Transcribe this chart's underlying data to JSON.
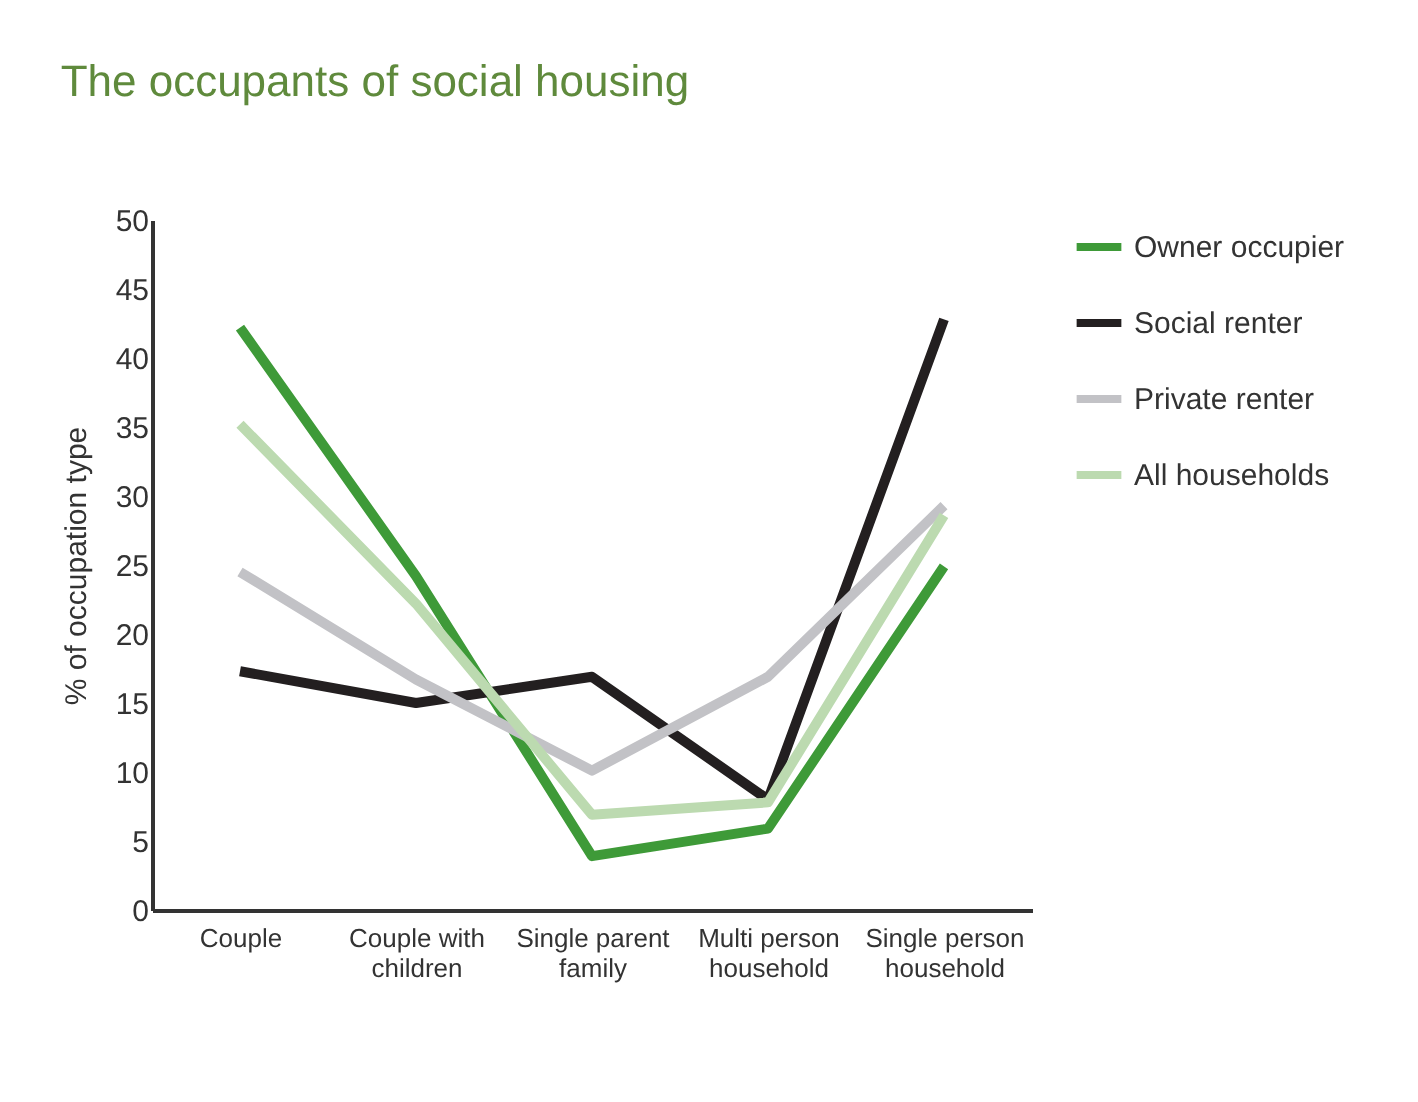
{
  "chart_data": {
    "type": "line",
    "title": "The occupants of social housing",
    "ylabel": "% of occupation type",
    "categories": [
      "Couple",
      "Couple with\nchildren",
      "Single parent\nfamily",
      "Multi person\nhousehold",
      "Single person\nhousehold"
    ],
    "series": [
      {
        "name": "Owner occupier",
        "color": "#3e9a38",
        "values": [
          42.2,
          24.2,
          3.9,
          5.9,
          24.9
        ]
      },
      {
        "name": "Social renter",
        "color": "#231f20",
        "values": [
          17.3,
          15,
          16.9,
          8,
          42.8
        ]
      },
      {
        "name": "Private renter",
        "color": "#c2c2c6",
        "values": [
          24.5,
          16.7,
          10.1,
          16.9,
          29.3
        ]
      },
      {
        "name": "All households",
        "color": "#bcdab0",
        "values": [
          35.2,
          22.2,
          6.9,
          7.8,
          28.6
        ]
      }
    ],
    "ylim": [
      0,
      50
    ],
    "yticks": [
      0,
      5,
      10,
      15,
      20,
      25,
      30,
      35,
      40,
      45,
      50
    ],
    "grid": false,
    "legend": "right",
    "line_style": "solid",
    "marker": "none"
  }
}
